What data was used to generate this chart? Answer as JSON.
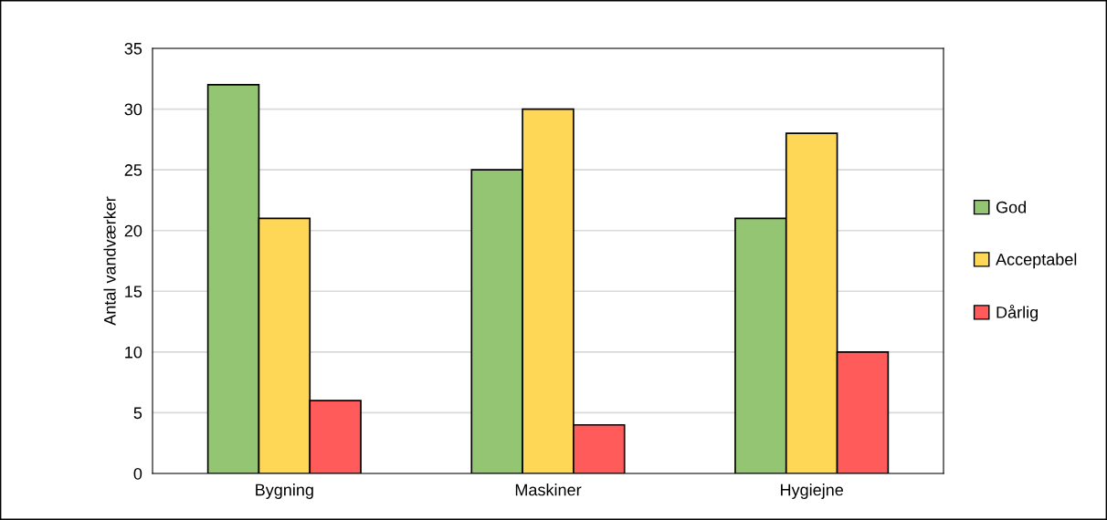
{
  "chart_data": {
    "type": "bar",
    "ylabel": "Antal vandværker",
    "categories": [
      "Bygning",
      "Maskiner",
      "Hygiejne"
    ],
    "series": [
      {
        "name": "God",
        "color": "#93c572",
        "values": [
          32,
          25,
          21
        ]
      },
      {
        "name": "Acceptabel",
        "color": "#ffd757",
        "values": [
          21,
          30,
          28
        ]
      },
      {
        "name": "Dårlig",
        "color": "#ff5b5b",
        "values": [
          6,
          4,
          10
        ]
      }
    ],
    "ylim": [
      0,
      35
    ],
    "yticks": [
      0,
      5,
      10,
      15,
      20,
      25,
      30,
      35
    ],
    "grid": "y",
    "legend": "right"
  }
}
